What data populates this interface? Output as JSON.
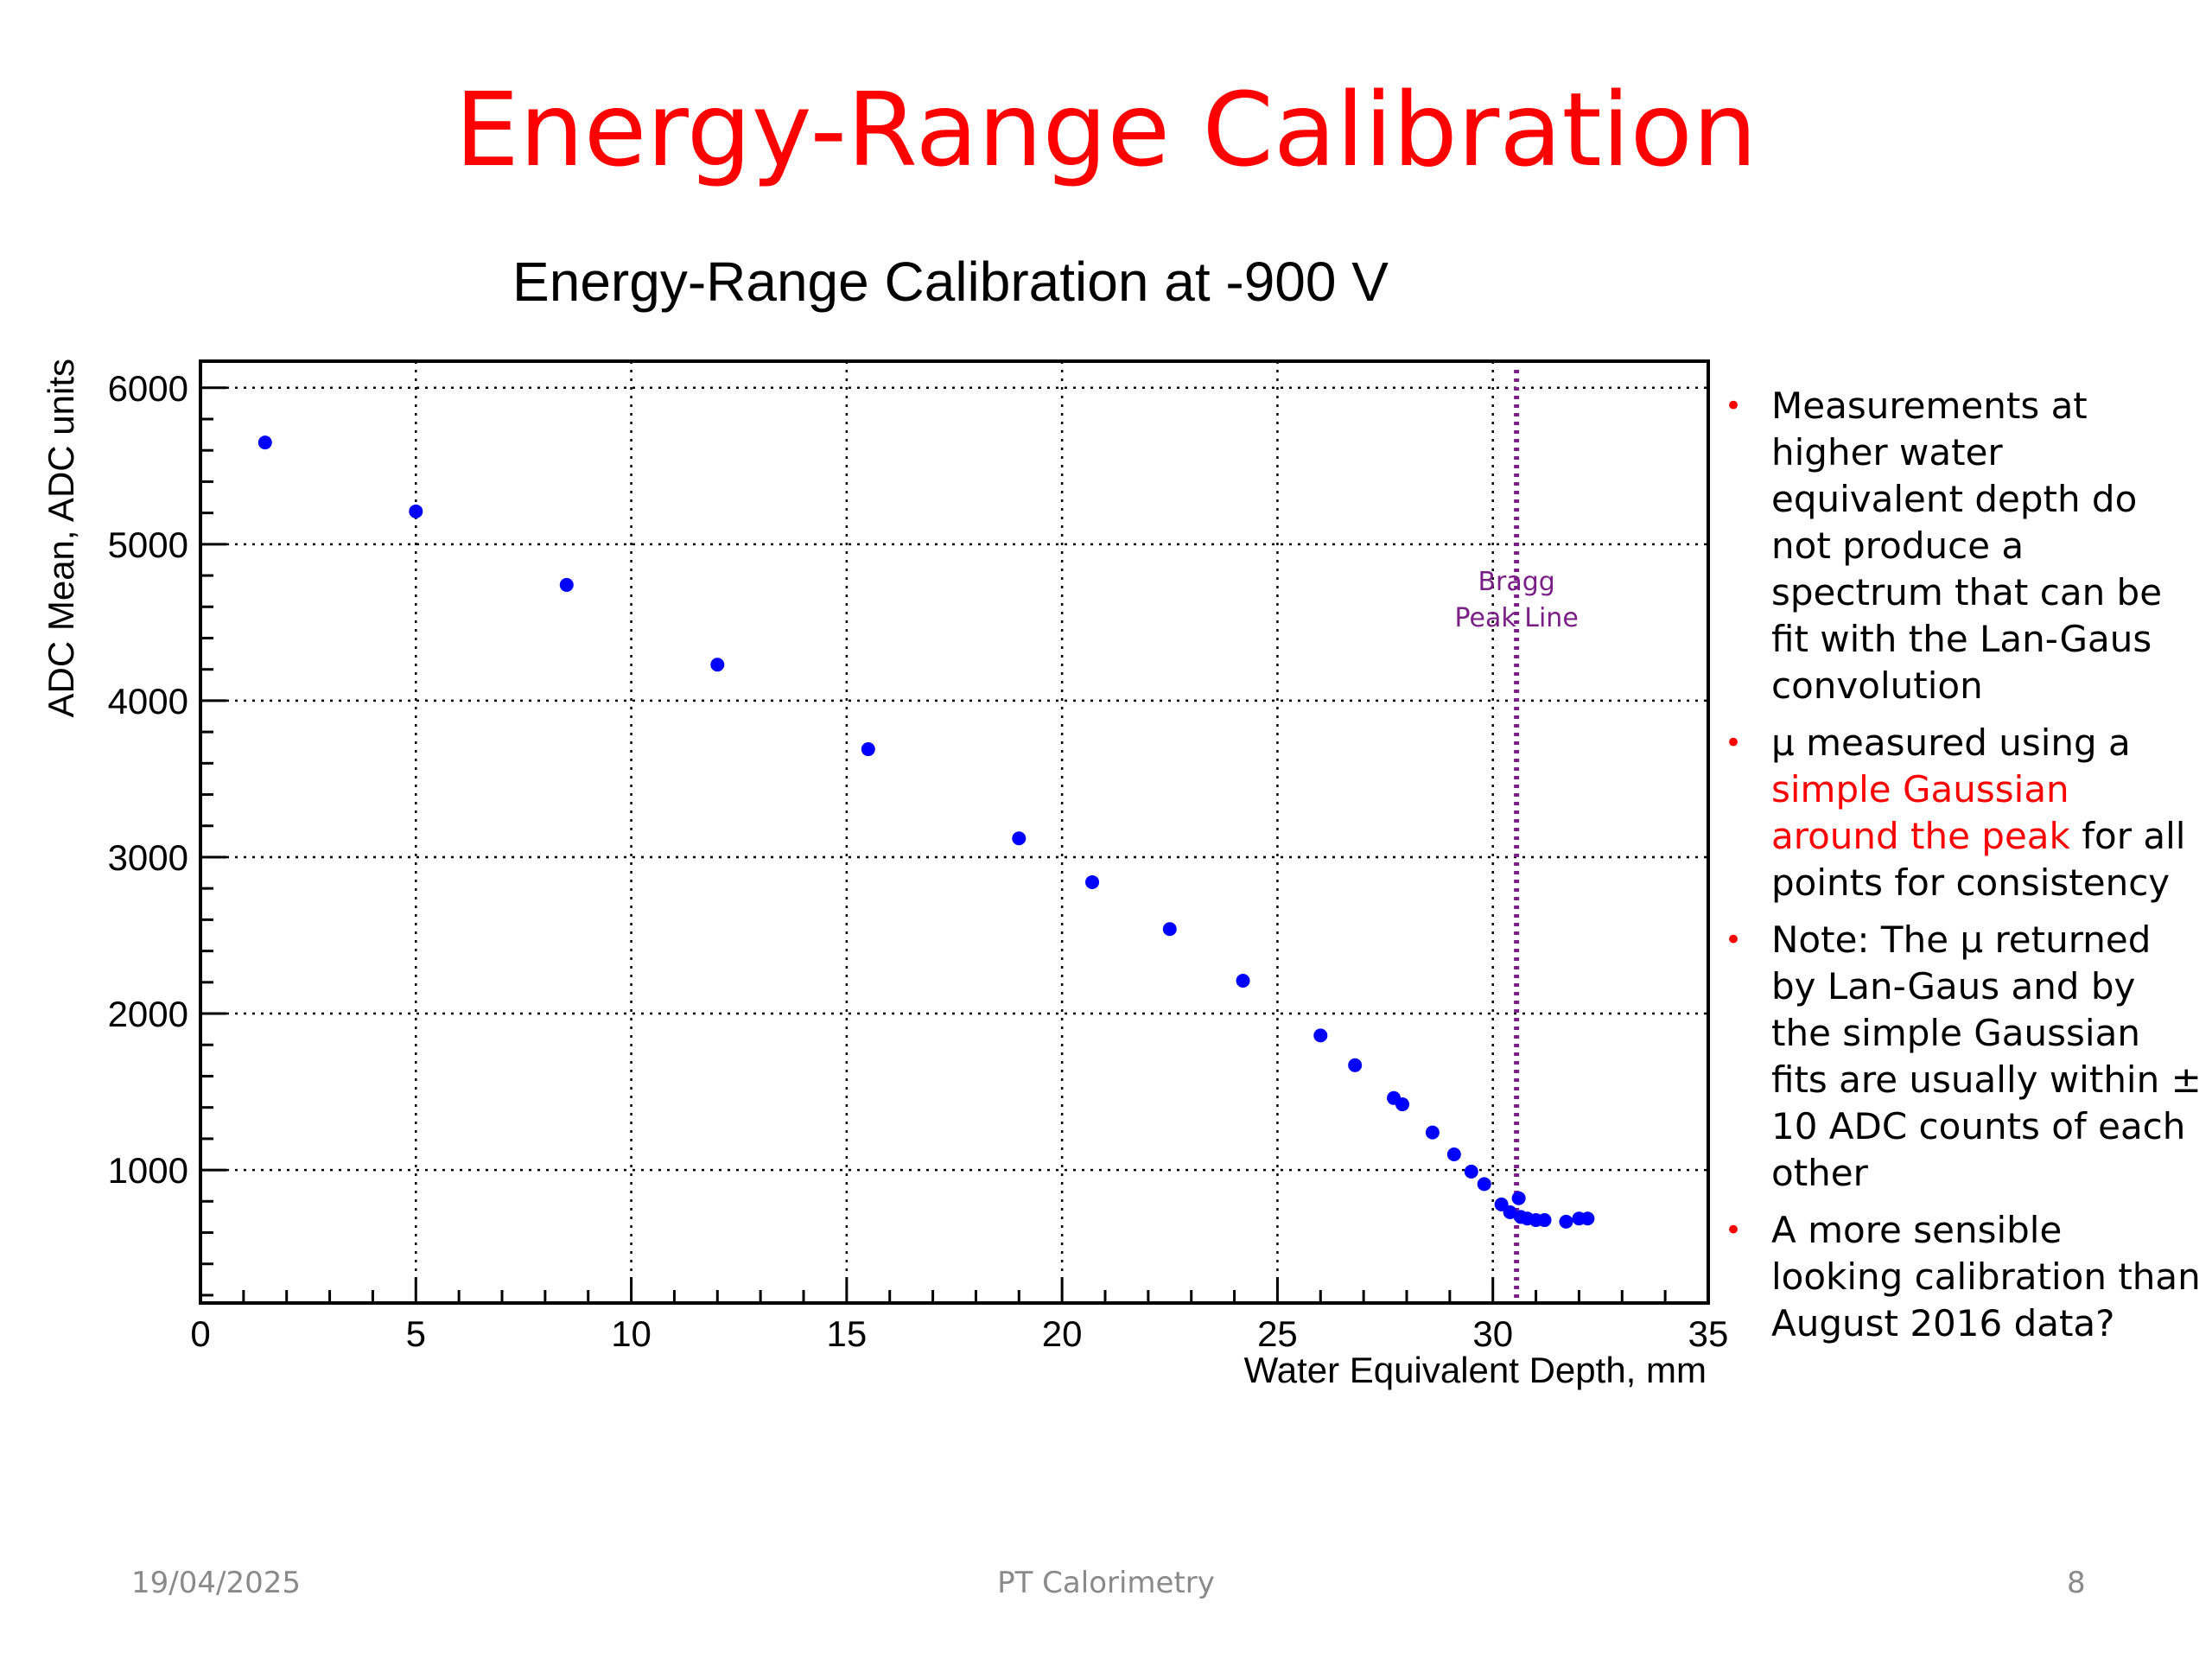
{
  "slide": {
    "title": "Energy-Range Calibration",
    "footer_date": "19/04/2025",
    "footer_center": "PT Calorimetry",
    "page_number": "8",
    "accent_color": "#ff0000"
  },
  "bullets": [
    {
      "parts": [
        {
          "text": "Measurements at higher water equivalent depth do not produce a spectrum that can be fit with the Lan-Gaus convolution",
          "highlight": false
        }
      ]
    },
    {
      "parts": [
        {
          "text": "μ measured using a ",
          "highlight": false
        },
        {
          "text": "simple Gaussian around the peak",
          "highlight": true
        },
        {
          "text": " for all points for consistency",
          "highlight": false
        }
      ]
    },
    {
      "parts": [
        {
          "text": "Note: The μ returned by Lan-Gaus and by the simple Gaussian fits are usually within ± 10 ADC counts of each other",
          "highlight": false
        }
      ]
    },
    {
      "parts": [
        {
          "text": "A more sensible looking calibration than August 2016 data?",
          "highlight": false
        }
      ]
    }
  ],
  "chart_data": {
    "type": "scatter",
    "title": "Energy-Range Calibration at -900 V",
    "xlabel": "Water Equivalent Depth, mm",
    "ylabel": "ADC Mean, ADC units",
    "xlim": [
      0,
      35
    ],
    "ylim": [
      150,
      6170
    ],
    "xticks": [
      0,
      5,
      10,
      15,
      20,
      25,
      30,
      35
    ],
    "yticks": [
      1000,
      2000,
      3000,
      4000,
      5000,
      6000
    ],
    "grid": true,
    "marker_color": "#0000ff",
    "series": [
      {
        "x": [
          1.5,
          5.0,
          8.5,
          12.0,
          15.5,
          19.0,
          20.7,
          22.5,
          24.2,
          26.0,
          26.8,
          27.7,
          27.9,
          28.6,
          29.1,
          29.5,
          29.8,
          30.2,
          30.4,
          30.6,
          30.65,
          30.8,
          31.0,
          31.2,
          31.7,
          32.0,
          32.2
        ],
        "y": [
          5650,
          5210,
          4740,
          4230,
          3690,
          3120,
          2840,
          2540,
          2210,
          1860,
          1670,
          1460,
          1420,
          1240,
          1100,
          990,
          910,
          780,
          730,
          820,
          700,
          690,
          680,
          680,
          670,
          690,
          690
        ]
      }
    ],
    "annotations": [
      {
        "type": "vline",
        "x": 30.55,
        "label_lines": [
          "Bragg",
          "Peak Line"
        ],
        "color": "#7a1f86",
        "style": "dotted"
      }
    ]
  }
}
